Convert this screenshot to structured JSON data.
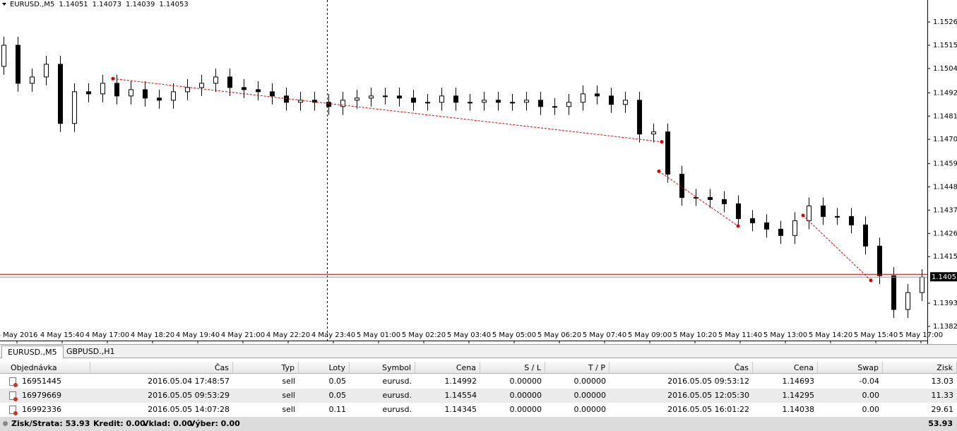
{
  "header": {
    "symbol": "EURUSD.,M5",
    "ohlc": [
      1.14051,
      1.14073,
      1.14039,
      1.14053
    ]
  },
  "chart_data": {
    "type": "candlestick",
    "x_labels": [
      "4 May 2016",
      "4 May 15:40",
      "4 May 17:00",
      "4 May 18:20",
      "4 May 19:40",
      "4 May 21:00",
      "4 May 22:20",
      "4 May 23:40",
      "5 May 01:00",
      "5 May 02:20",
      "5 May 03:40",
      "5 May 05:00",
      "5 May 06:20",
      "5 May 07:40",
      "5 May 09:00",
      "5 May 10:20",
      "5 May 11:40",
      "5 May 13:00",
      "5 May 14:20",
      "5 May 15:40",
      "5 May 17:00"
    ],
    "ylim": [
      1.13753,
      1.15364
    ],
    "yticks": [
      {
        "value": 1.1526,
        "label": "1.15260"
      },
      {
        "value": 1.1515,
        "label": "1.15150"
      },
      {
        "value": 1.1504,
        "label": "1.15040"
      },
      1.14925,
      1.14815,
      1.14705,
      {
        "value": 1.1459,
        "label": "1.14590"
      },
      {
        "value": 1.1448,
        "label": "1.14480"
      },
      {
        "value": 1.1437,
        "label": "1.14370"
      },
      {
        "value": 1.1426,
        "label": "1.14260"
      },
      {
        "value": 1.1415,
        "label": "1.14150"
      },
      {
        "value": 1.1393,
        "label": "1.13930"
      },
      {
        "value": 1.1382,
        "label": "1.13820"
      }
    ],
    "bid": 1.14053,
    "open": [
      1.1505,
      1.1515,
      1.1497,
      1.15,
      1.1506,
      1.1478,
      1.1493,
      1.1492,
      1.1497,
      1.1491,
      1.1494,
      1.149,
      1.1489,
      1.1493,
      1.1495,
      1.1497,
      1.15,
      1.1495,
      1.1494,
      1.1493,
      1.1491,
      1.1488,
      1.1489,
      1.1488,
      1.1486,
      1.1489,
      1.149,
      1.1491,
      1.1491,
      1.149,
      1.1488,
      1.1488,
      1.1491,
      1.1488,
      1.1488,
      1.1489,
      1.1488,
      1.1488,
      1.1489,
      1.1486,
      1.1486,
      1.1488,
      1.1492,
      1.1491,
      1.1487,
      1.1489,
      1.1473,
      1.1474,
      1.1454,
      1.1443,
      1.1443,
      1.1442,
      1.144,
      1.1433,
      1.1431,
      1.1428,
      1.1425,
      1.1432,
      1.1439,
      1.1434,
      1.1434,
      1.143,
      1.142,
      1.1406,
      1.139,
      1.1398
    ],
    "high": [
      1.1519,
      1.1519,
      1.1504,
      1.151,
      1.151,
      1.1497,
      1.1497,
      1.1501,
      1.1501,
      1.1498,
      1.1498,
      1.1494,
      1.1497,
      1.1499,
      1.1501,
      1.1504,
      1.1504,
      1.1499,
      1.1498,
      1.1497,
      1.1495,
      1.1493,
      1.1493,
      1.1492,
      1.1493,
      1.1494,
      1.1495,
      1.1495,
      1.1495,
      1.1494,
      1.1492,
      1.1495,
      1.1495,
      1.1492,
      1.1493,
      1.1493,
      1.1492,
      1.1493,
      1.1493,
      1.149,
      1.1492,
      1.1496,
      1.1496,
      1.1495,
      1.1493,
      1.1493,
      1.1478,
      1.1478,
      1.1458,
      1.1447,
      1.1447,
      1.1446,
      1.1444,
      1.1437,
      1.1435,
      1.1432,
      1.1436,
      1.1443,
      1.1443,
      1.1438,
      1.1438,
      1.1434,
      1.1424,
      1.141,
      1.1402,
      1.1409
    ],
    "low": [
      1.1501,
      1.1493,
      1.1493,
      1.1496,
      1.1474,
      1.1474,
      1.1488,
      1.1488,
      1.1487,
      1.1487,
      1.1486,
      1.1485,
      1.1485,
      1.1489,
      1.1491,
      1.1493,
      1.1491,
      1.149,
      1.1489,
      1.1487,
      1.1484,
      1.1484,
      1.1484,
      1.1482,
      1.1482,
      1.1485,
      1.1486,
      1.1487,
      1.1486,
      1.1484,
      1.1484,
      1.1484,
      1.1484,
      1.1484,
      1.1484,
      1.1484,
      1.1484,
      1.1484,
      1.1482,
      1.1482,
      1.1482,
      1.1484,
      1.1487,
      1.1483,
      1.1483,
      1.1469,
      1.1469,
      1.145,
      1.1439,
      1.1439,
      1.1438,
      1.1436,
      1.1429,
      1.1427,
      1.1424,
      1.1421,
      1.1421,
      1.1428,
      1.143,
      1.143,
      1.1426,
      1.1416,
      1.1402,
      1.1386,
      1.1386,
      1.1394
    ],
    "close": [
      1.1515,
      1.1497,
      1.15,
      1.1506,
      1.1478,
      1.1493,
      1.1492,
      1.1497,
      1.1491,
      1.1494,
      1.149,
      1.1489,
      1.1493,
      1.1495,
      1.1497,
      1.15,
      1.1495,
      1.1494,
      1.1493,
      1.1491,
      1.1488,
      1.1489,
      1.1488,
      1.1486,
      1.1489,
      1.149,
      1.1491,
      1.1491,
      1.149,
      1.1488,
      1.1488,
      1.1491,
      1.1488,
      1.1488,
      1.1489,
      1.1488,
      1.1488,
      1.1489,
      1.1486,
      1.1486,
      1.1488,
      1.1492,
      1.1491,
      1.1487,
      1.1489,
      1.1473,
      1.1474,
      1.1454,
      1.1443,
      1.1443,
      1.1442,
      1.144,
      1.1433,
      1.1431,
      1.1428,
      1.1425,
      1.1432,
      1.1439,
      1.1434,
      1.1434,
      1.143,
      1.142,
      1.1406,
      1.139,
      1.1398,
      1.14053
    ]
  },
  "tabs": [
    "EURUSD.,M5",
    "GBPUSD.,H1"
  ],
  "table": {
    "columns": [
      "Objednávka",
      "Čas",
      "Typ",
      "Loty",
      "Symbol",
      "Cena",
      "S / L",
      "T / P",
      "Čas",
      "Cena",
      "Swap",
      "Zisk"
    ],
    "rows": [
      [
        "16951445",
        "2016.05.04 17:48:57",
        "sell",
        "0.05",
        "eurusd.",
        "1.14992",
        "0.00000",
        "0.00000",
        "2016.05.05 09:53:12",
        "1.14693",
        "-0.04",
        "13.03"
      ],
      [
        "16979669",
        "2016.05.05 09:53:29",
        "sell",
        "0.05",
        "eurusd.",
        "1.14554",
        "0.00000",
        "0.00000",
        "2016.05.05 12:05:30",
        "1.14295",
        "0.00",
        "11.33"
      ],
      [
        "16992336",
        "2016.05.05 14:07:28",
        "sell",
        "0.11",
        "eurusd.",
        "1.14345",
        "0.00000",
        "0.00000",
        "2016.05.05 16:01:22",
        "1.14038",
        "0.00",
        "29.61"
      ]
    ]
  },
  "footer": {
    "items": [
      "Zisk/Strata: 53.93",
      "Kredit: 0.00",
      "Vklad: 0.00",
      "Výber: 0.00"
    ],
    "total": "53.93"
  }
}
